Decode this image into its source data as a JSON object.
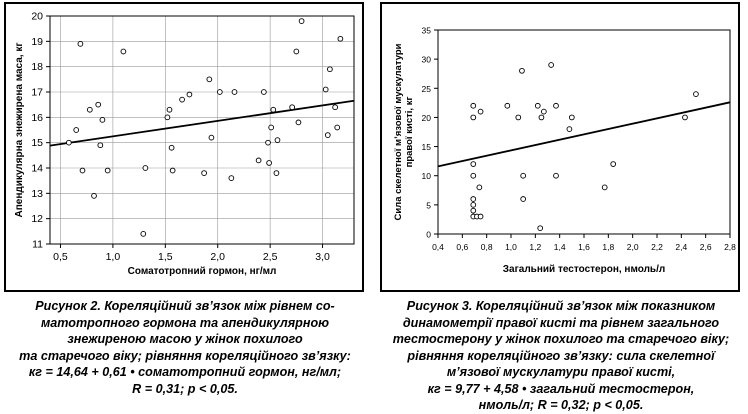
{
  "figures": [
    {
      "caption_lines": [
        "Рисунок 2. Кореляційний зв’язок між рівнем со-",
        "матотропного гормона та апендикулярною",
        "знежиреною масою у жінок похилого",
        "та старечого віку; рівняння кореляційного зв’язку:",
        "кг = 14,64 + 0,61 • соматотропний гормон, нг/мл;",
        "R = 0,31; р < 0,05."
      ]
    },
    {
      "caption_lines": [
        "Рисунок 3. Кореляційний зв’язок між показником",
        "динамометрії правої кисті та рівнем загального",
        "тестостерону у жінок похилого та старечого віку;",
        "рівняння кореляційного зв’язку: сила скелетної",
        "м’язової мускулатури правої кисті,",
        "кг = 9,77 + 4,58 • загальний тестостерон,",
        "нмоль/л; R = 0,32; р < 0,05."
      ]
    }
  ],
  "chart_data": [
    {
      "type": "scatter",
      "title": "",
      "xlabel": "Соматотропний гормон, нг/мл",
      "ylabel": "Апендикулярна знежирена маса, кг",
      "xlim": [
        0.4,
        3.3
      ],
      "ylim": [
        11,
        20
      ],
      "xticks": [
        0.5,
        1.0,
        1.5,
        2.0,
        2.5,
        3.0
      ],
      "xtick_labels": [
        "0,5",
        "1,0",
        "1,5",
        "2,0",
        "2,5",
        "3,0"
      ],
      "yticks": [
        11,
        12,
        13,
        14,
        15,
        16,
        17,
        18,
        19,
        20
      ],
      "ytick_labels": [
        "11",
        "12",
        "13",
        "14",
        "15",
        "16",
        "17",
        "18",
        "19",
        "20"
      ],
      "grid": true,
      "points": [
        {
          "x": 0.58,
          "y": 15.0
        },
        {
          "x": 0.65,
          "y": 15.5
        },
        {
          "x": 0.69,
          "y": 18.9
        },
        {
          "x": 0.71,
          "y": 13.9
        },
        {
          "x": 0.78,
          "y": 16.3
        },
        {
          "x": 0.82,
          "y": 12.9
        },
        {
          "x": 0.86,
          "y": 16.5
        },
        {
          "x": 0.88,
          "y": 14.9
        },
        {
          "x": 0.9,
          "y": 15.9
        },
        {
          "x": 0.95,
          "y": 13.9
        },
        {
          "x": 1.1,
          "y": 18.6
        },
        {
          "x": 1.29,
          "y": 11.4
        },
        {
          "x": 1.31,
          "y": 14.0
        },
        {
          "x": 1.52,
          "y": 16.0
        },
        {
          "x": 1.54,
          "y": 16.3
        },
        {
          "x": 1.56,
          "y": 14.8
        },
        {
          "x": 1.57,
          "y": 13.9
        },
        {
          "x": 1.66,
          "y": 16.7
        },
        {
          "x": 1.73,
          "y": 16.9
        },
        {
          "x": 1.87,
          "y": 13.8
        },
        {
          "x": 1.92,
          "y": 17.5
        },
        {
          "x": 1.94,
          "y": 15.2
        },
        {
          "x": 2.02,
          "y": 17.0
        },
        {
          "x": 2.13,
          "y": 13.6
        },
        {
          "x": 2.16,
          "y": 17.0
        },
        {
          "x": 2.39,
          "y": 14.3
        },
        {
          "x": 2.44,
          "y": 17.0
        },
        {
          "x": 2.48,
          "y": 15.0
        },
        {
          "x": 2.49,
          "y": 14.2
        },
        {
          "x": 2.51,
          "y": 15.6
        },
        {
          "x": 2.53,
          "y": 16.3
        },
        {
          "x": 2.56,
          "y": 13.8
        },
        {
          "x": 2.57,
          "y": 15.1
        },
        {
          "x": 2.71,
          "y": 16.4
        },
        {
          "x": 2.75,
          "y": 18.6
        },
        {
          "x": 2.77,
          "y": 15.8
        },
        {
          "x": 2.8,
          "y": 19.8
        },
        {
          "x": 3.03,
          "y": 17.1
        },
        {
          "x": 3.05,
          "y": 15.3
        },
        {
          "x": 3.07,
          "y": 17.9
        },
        {
          "x": 3.12,
          "y": 16.4
        },
        {
          "x": 3.14,
          "y": 15.6
        },
        {
          "x": 3.17,
          "y": 19.1
        }
      ],
      "regression": {
        "intercept": 14.64,
        "slope": 0.61
      }
    },
    {
      "type": "scatter",
      "title": "",
      "xlabel": "Загальний тестостерон, нмоль/л",
      "ylabel": "Сила скелетної м’язової мускулатури правої кисті, кг",
      "xlim": [
        0.4,
        2.8
      ],
      "ylim": [
        0,
        35
      ],
      "xticks": [
        0.4,
        0.6,
        0.8,
        1.0,
        1.2,
        1.4,
        1.6,
        1.8,
        2.0,
        2.2,
        2.4,
        2.6,
        2.8
      ],
      "xtick_labels": [
        "0,4",
        "0,6",
        "0,8",
        "1,0",
        "1,2",
        "1,4",
        "1,6",
        "1,8",
        "2,0",
        "2,2",
        "2,4",
        "2,6",
        "2,8"
      ],
      "yticks": [
        0,
        5,
        10,
        15,
        20,
        25,
        30,
        35
      ],
      "ytick_labels": [
        "0",
        "5",
        "10",
        "15",
        "20",
        "25",
        "30",
        "35"
      ],
      "grid": false,
      "points": [
        {
          "x": 0.69,
          "y": 22
        },
        {
          "x": 0.69,
          "y": 20
        },
        {
          "x": 0.69,
          "y": 12
        },
        {
          "x": 0.69,
          "y": 10
        },
        {
          "x": 0.69,
          "y": 6
        },
        {
          "x": 0.69,
          "y": 5
        },
        {
          "x": 0.69,
          "y": 4
        },
        {
          "x": 0.69,
          "y": 3
        },
        {
          "x": 0.72,
          "y": 3
        },
        {
          "x": 0.75,
          "y": 3
        },
        {
          "x": 0.74,
          "y": 8
        },
        {
          "x": 0.75,
          "y": 21
        },
        {
          "x": 0.97,
          "y": 22
        },
        {
          "x": 1.06,
          "y": 20
        },
        {
          "x": 1.09,
          "y": 28
        },
        {
          "x": 1.1,
          "y": 10
        },
        {
          "x": 1.1,
          "y": 6
        },
        {
          "x": 1.22,
          "y": 22
        },
        {
          "x": 1.24,
          "y": 1
        },
        {
          "x": 1.25,
          "y": 20
        },
        {
          "x": 1.27,
          "y": 21
        },
        {
          "x": 1.33,
          "y": 29
        },
        {
          "x": 1.37,
          "y": 22
        },
        {
          "x": 1.37,
          "y": 10
        },
        {
          "x": 1.48,
          "y": 18
        },
        {
          "x": 1.5,
          "y": 20
        },
        {
          "x": 1.77,
          "y": 8
        },
        {
          "x": 1.84,
          "y": 12
        },
        {
          "x": 2.43,
          "y": 20
        },
        {
          "x": 2.52,
          "y": 24
        }
      ],
      "regression": {
        "intercept": 9.77,
        "slope": 4.58
      }
    }
  ]
}
